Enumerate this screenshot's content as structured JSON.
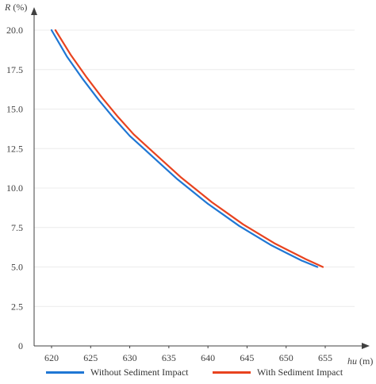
{
  "chart_data": {
    "type": "line",
    "ylabel": "R (%)",
    "xlabel": "hu (m)",
    "xlim": [
      617,
      659
    ],
    "ylim": [
      0,
      20
    ],
    "x_ticks": [
      "620",
      "625",
      "630",
      "635",
      "640",
      "645",
      "650",
      "655"
    ],
    "x_tick_values": [
      620,
      625,
      630,
      635,
      640,
      645,
      650,
      655
    ],
    "y_ticks": [
      "0",
      "2.5",
      "5.0",
      "7.5",
      "10.0",
      "12.5",
      "15.0",
      "17.5",
      "20.0"
    ],
    "y_tick_values": [
      0,
      2.5,
      5,
      7.5,
      10,
      12.5,
      15,
      17.5,
      20
    ],
    "grid": true,
    "legend_position": "bottom",
    "series": [
      {
        "name": "Without Sediment Impact",
        "color": "#1f77d4",
        "x": [
          620,
          622,
          624,
          626,
          628,
          630,
          632,
          634,
          636,
          638,
          640,
          642,
          644,
          646,
          648,
          650,
          652,
          654
        ],
        "y": [
          20.0,
          18.3,
          16.9,
          15.6,
          14.4,
          13.3,
          12.4,
          11.5,
          10.6,
          9.8,
          9.0,
          8.3,
          7.6,
          7.0,
          6.4,
          5.9,
          5.4,
          5.0
        ]
      },
      {
        "name": "With Sediment Impact",
        "color": "#e8431f",
        "x": [
          620.5,
          622.5,
          624.5,
          626.5,
          628.5,
          630.5,
          632.5,
          634.5,
          636.5,
          638.5,
          640.5,
          642.5,
          644.5,
          646.5,
          648.5,
          650.5,
          652.5,
          654.7
        ],
        "y": [
          20.0,
          18.4,
          17.0,
          15.7,
          14.5,
          13.4,
          12.5,
          11.6,
          10.7,
          9.9,
          9.1,
          8.4,
          7.7,
          7.1,
          6.5,
          6.0,
          5.5,
          5.0
        ]
      }
    ]
  }
}
